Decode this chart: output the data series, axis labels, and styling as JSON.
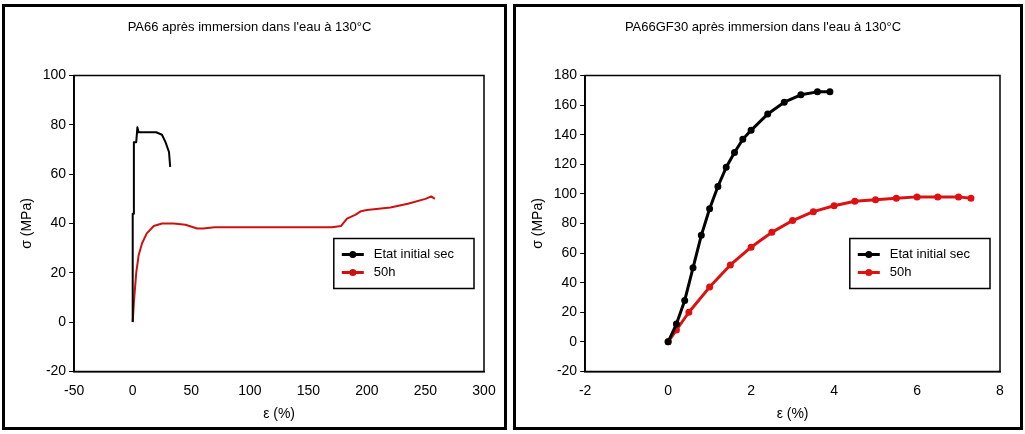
{
  "chart_data": [
    {
      "type": "line",
      "title": "PA66 après immersion dans l'eau à 130°C",
      "xlabel": "ε (%)",
      "ylabel": "σ (MPa)",
      "xlim": [
        -50,
        300
      ],
      "xticks": [
        -50,
        0,
        50,
        100,
        150,
        200,
        250,
        300
      ],
      "ylim": [
        -20,
        100
      ],
      "yticks": [
        -20,
        0,
        20,
        40,
        60,
        80,
        100
      ],
      "grid": false,
      "legend": "right",
      "marker": "none",
      "series": [
        {
          "name": "Etat initial sec",
          "color": "#000000",
          "x": [
            0,
            0,
            1,
            1,
            3,
            4,
            5,
            20,
            25,
            28,
            31,
            32
          ],
          "values": [
            0,
            44,
            44,
            73,
            73,
            79,
            77,
            77,
            76,
            73,
            69,
            63
          ]
        },
        {
          "name": "50h",
          "color": "#cc1111",
          "x": [
            0,
            1,
            3,
            5,
            8,
            12,
            18,
            25,
            35,
            45,
            55,
            60,
            70,
            100,
            150,
            170,
            178,
            183,
            190,
            195,
            200,
            210,
            220,
            235,
            250,
            255,
            258
          ],
          "values": [
            0,
            8,
            20,
            27,
            32,
            36,
            39,
            40,
            40,
            39.5,
            38,
            38,
            38.5,
            38.5,
            38.5,
            38.5,
            39,
            42,
            43.5,
            45,
            45.5,
            46,
            46.5,
            48,
            50,
            51,
            50
          ]
        }
      ]
    },
    {
      "type": "line",
      "title": "PA66GF30 après immersion dans l'eau à 130°C",
      "xlabel": "ε (%)",
      "ylabel": "σ (MPa)",
      "xlim": [
        -2,
        8
      ],
      "xticks": [
        -2,
        0,
        2,
        4,
        6,
        8
      ],
      "ylim": [
        -20,
        180
      ],
      "yticks": [
        -20,
        0,
        20,
        40,
        60,
        80,
        100,
        120,
        140,
        160,
        180
      ],
      "grid": false,
      "legend": "right",
      "marker": "circle",
      "series": [
        {
          "name": "Etat initial sec",
          "color": "#000000",
          "x": [
            0,
            0.2,
            0.4,
            0.6,
            0.8,
            1,
            1.2,
            1.4,
            1.6,
            1.8,
            2,
            2.4,
            2.8,
            3.2,
            3.6,
            3.9
          ],
          "values": [
            0,
            12,
            28,
            50,
            72,
            90,
            105,
            118,
            128,
            137,
            143,
            154,
            162,
            167,
            169,
            169
          ]
        },
        {
          "name": "50h",
          "color": "#dd1111",
          "x": [
            0,
            0.2,
            0.5,
            1,
            1.5,
            2,
            2.5,
            3,
            3.5,
            4,
            4.5,
            5,
            5.5,
            6,
            6.5,
            7,
            7.3
          ],
          "values": [
            0,
            8,
            20,
            37,
            52,
            64,
            74,
            82,
            88,
            92,
            95,
            96,
            97,
            98,
            98,
            98,
            97
          ]
        }
      ]
    }
  ]
}
